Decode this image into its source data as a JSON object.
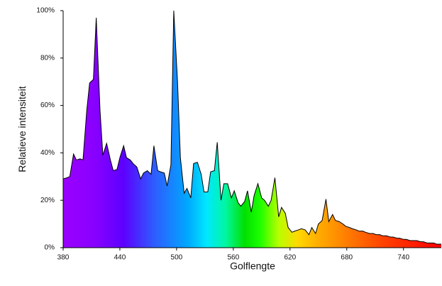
{
  "chart_data": {
    "type": "area",
    "title": "",
    "xlabel": "Golflengte",
    "ylabel": "Relatieve intensiteit",
    "xlim": [
      380,
      780
    ],
    "ylim": [
      0,
      100
    ],
    "x_ticks": [
      380,
      440,
      500,
      560,
      620,
      680,
      740
    ],
    "x_tick_labels": [
      "380",
      "440",
      "500",
      "560",
      "620",
      "680",
      "740"
    ],
    "y_ticks": [
      0,
      20,
      40,
      60,
      80,
      100
    ],
    "y_tick_labels": [
      "0%",
      "20%",
      "40%",
      "60%",
      "80%",
      "100%"
    ],
    "grid": false,
    "legend": "none",
    "fill": "visible-spectrum-gradient",
    "outline_color": "#000000",
    "series": [
      {
        "x": [
          380,
          384,
          387,
          391,
          394,
          398,
          401,
          405,
          408,
          412,
          415,
          419,
          422,
          426,
          430,
          433,
          437,
          440,
          444,
          447,
          451,
          454,
          458,
          462,
          465,
          469,
          473,
          476,
          480,
          483,
          487,
          490,
          494,
          497,
          501,
          504,
          508,
          511,
          515,
          518,
          522,
          526,
          529,
          533,
          536,
          540,
          543,
          547,
          550,
          554,
          558,
          561,
          565,
          568,
          572,
          575,
          579,
          582,
          586,
          590,
          593,
          597,
          600,
          604,
          608,
          611,
          615,
          618,
          622,
          625,
          629,
          632,
          636,
          640,
          643,
          647,
          650,
          654,
          658,
          661,
          665,
          668,
          672,
          676,
          679,
          683,
          686,
          690,
          693,
          697,
          700,
          704,
          708,
          711,
          715,
          718,
          722,
          726,
          729,
          733,
          736,
          740,
          743,
          747,
          751,
          754,
          758,
          761,
          765,
          768,
          772,
          775,
          780
        ],
        "values": [
          29,
          29.5,
          30,
          39.5,
          37,
          37.5,
          37,
          58,
          69.5,
          71,
          97,
          58,
          39,
          44,
          37,
          32.5,
          33,
          38,
          43,
          38,
          37,
          35.5,
          34,
          29,
          31.5,
          32.5,
          31,
          43,
          32.5,
          32,
          31.5,
          26,
          35,
          100,
          70,
          38,
          23,
          25,
          21,
          35.5,
          36,
          31,
          23.5,
          23.5,
          32,
          32.5,
          44.5,
          20,
          27,
          27,
          21,
          24,
          19,
          17.5,
          19.5,
          24,
          15,
          22,
          27,
          21,
          20,
          17.5,
          20,
          29.5,
          13,
          17,
          14.5,
          8.5,
          6.5,
          7,
          7.5,
          8,
          7.5,
          5.5,
          8.5,
          6,
          10,
          11.5,
          20.5,
          11,
          14,
          11.5,
          11,
          10,
          9,
          8.5,
          8,
          7.5,
          7,
          7,
          6.5,
          6,
          6,
          5.5,
          5.5,
          5,
          5,
          4.5,
          4.5,
          4,
          4,
          3.5,
          3.5,
          3,
          3,
          3,
          2.5,
          2.5,
          2,
          2,
          2,
          1.5,
          1.5
        ]
      }
    ]
  }
}
